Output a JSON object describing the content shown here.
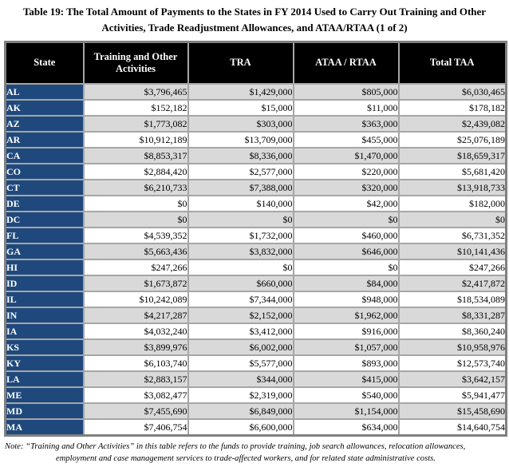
{
  "title": "Table 19: The Total Amount of Payments to the States in FY 2014 Used to Carry Out Training and Other Activities, Trade Readjustment Allowances, and ATAA/RTAA (1 of 2)",
  "note": "Note: “Training and Other Activities” in this table refers to the funds to provide training, job search allowances, relocation allowances, employment and case management services to trade-affected workers, and for related state administrative costs.",
  "colors": {
    "header_bg": "#000000",
    "header_text": "#ffffff",
    "state_cell_bg": "#1F497D",
    "state_cell_text": "#ffffff",
    "row_alt_bg": "#D9D9D9",
    "row_bg": "#ffffff",
    "inner_border": "#A6A6A6",
    "outer_border": "#808080"
  },
  "table": {
    "columns": [
      "State",
      "Training and Other Activities",
      "TRA",
      "ATAA / RTAA",
      "Total TAA"
    ],
    "rows": [
      {
        "state": "AL",
        "values": [
          "$3,796,465",
          "$1,429,000",
          "$805,000",
          "$6,030,465"
        ]
      },
      {
        "state": "AK",
        "values": [
          "$152,182",
          "$15,000",
          "$11,000",
          "$178,182"
        ]
      },
      {
        "state": "AZ",
        "values": [
          "$1,773,082",
          "$303,000",
          "$363,000",
          "$2,439,082"
        ]
      },
      {
        "state": "AR",
        "values": [
          "$10,912,189",
          "$13,709,000",
          "$455,000",
          "$25,076,189"
        ]
      },
      {
        "state": "CA",
        "values": [
          "$8,853,317",
          "$8,336,000",
          "$1,470,000",
          "$18,659,317"
        ]
      },
      {
        "state": "CO",
        "values": [
          "$2,884,420",
          "$2,577,000",
          "$220,000",
          "$5,681,420"
        ]
      },
      {
        "state": "CT",
        "values": [
          "$6,210,733",
          "$7,388,000",
          "$320,000",
          "$13,918,733"
        ]
      },
      {
        "state": "DE",
        "values": [
          "$0",
          "$140,000",
          "$42,000",
          "$182,000"
        ]
      },
      {
        "state": "DC",
        "values": [
          "$0",
          "$0",
          "$0",
          "$0"
        ]
      },
      {
        "state": "FL",
        "values": [
          "$4,539,352",
          "$1,732,000",
          "$460,000",
          "$6,731,352"
        ]
      },
      {
        "state": "GA",
        "values": [
          "$5,663,436",
          "$3,832,000",
          "$646,000",
          "$10,141,436"
        ]
      },
      {
        "state": "HI",
        "values": [
          "$247,266",
          "$0",
          "$0",
          "$247,266"
        ]
      },
      {
        "state": "ID",
        "values": [
          "$1,673,872",
          "$660,000",
          "$84,000",
          "$2,417,872"
        ]
      },
      {
        "state": "IL",
        "values": [
          "$10,242,089",
          "$7,344,000",
          "$948,000",
          "$18,534,089"
        ]
      },
      {
        "state": "IN",
        "values": [
          "$4,217,287",
          "$2,152,000",
          "$1,962,000",
          "$8,331,287"
        ]
      },
      {
        "state": "IA",
        "values": [
          "$4,032,240",
          "$3,412,000",
          "$916,000",
          "$8,360,240"
        ]
      },
      {
        "state": "KS",
        "values": [
          "$3,899,976",
          "$6,002,000",
          "$1,057,000",
          "$10,958,976"
        ]
      },
      {
        "state": "KY",
        "values": [
          "$6,103,740",
          "$5,577,000",
          "$893,000",
          "$12,573,740"
        ]
      },
      {
        "state": "LA",
        "values": [
          "$2,883,157",
          "$344,000",
          "$415,000",
          "$3,642,157"
        ]
      },
      {
        "state": "ME",
        "values": [
          "$3,082,477",
          "$2,319,000",
          "$540,000",
          "$5,941,477"
        ]
      },
      {
        "state": "MD",
        "values": [
          "$7,455,690",
          "$6,849,000",
          "$1,154,000",
          "$15,458,690"
        ]
      },
      {
        "state": "MA",
        "values": [
          "$7,406,754",
          "$6,600,000",
          "$634,000",
          "$14,640,754"
        ]
      }
    ]
  }
}
